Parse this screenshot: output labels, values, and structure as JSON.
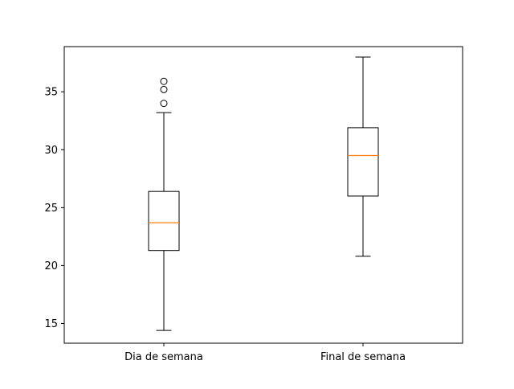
{
  "chart_data": {
    "type": "box",
    "title": "",
    "xlabel": "",
    "ylabel": "",
    "categories": [
      "Dia de semana",
      "Final de semana"
    ],
    "ylim": [
      13.3,
      38.9
    ],
    "yticks": [
      15,
      20,
      25,
      30,
      35
    ],
    "grid": false,
    "boxes": [
      {
        "category": "Dia de semana",
        "whisker_low": 14.4,
        "q1": 21.3,
        "median": 23.7,
        "q3": 26.4,
        "whisker_high": 33.2,
        "outliers": [
          34.0,
          35.2,
          35.9
        ]
      },
      {
        "category": "Final de semana",
        "whisker_low": 20.8,
        "q1": 26.0,
        "median": 29.5,
        "q3": 31.9,
        "whisker_high": 38.0,
        "outliers": []
      }
    ],
    "colors": {
      "box": "#000000",
      "median": "#ff7f0e",
      "axes": "#000000"
    }
  }
}
